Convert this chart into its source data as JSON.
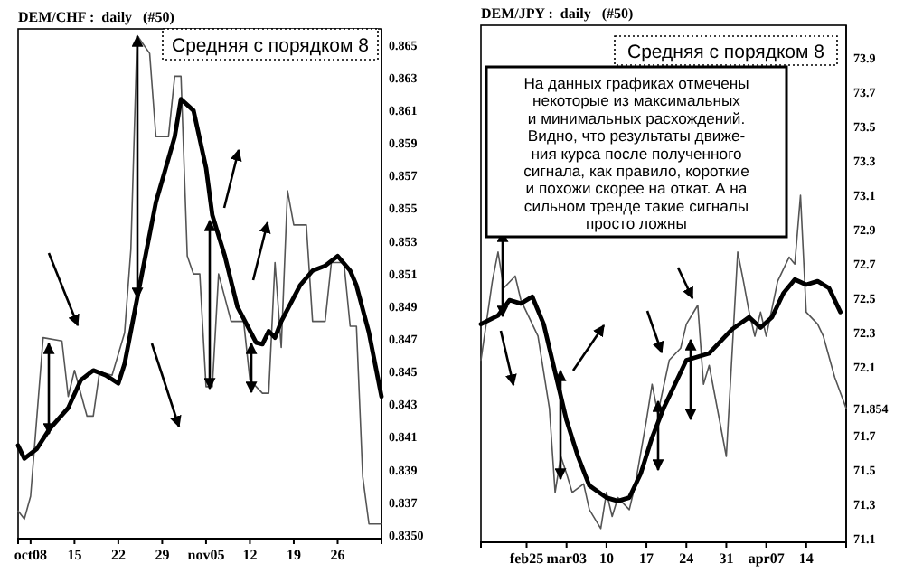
{
  "chart_data": [
    {
      "type": "line",
      "title": "DEM/CHF :  daily   (#50)",
      "annotations": [
        "Средняя с порядком 8"
      ],
      "xlim": [
        "--10-06",
        "--12-03"
      ],
      "xticks": [
        {
          "value": "--10-08",
          "label": "oct08"
        },
        {
          "value": "--10-15",
          "label": "15"
        },
        {
          "value": "--10-22",
          "label": "22"
        },
        {
          "value": "--10-29",
          "label": "29"
        },
        {
          "value": "--11-05",
          "label": "nov05"
        },
        {
          "value": "--11-12",
          "label": "12"
        },
        {
          "value": "--11-19",
          "label": "19"
        },
        {
          "value": "--11-26",
          "label": "26"
        }
      ],
      "ylim": [
        0.8348,
        0.866
      ],
      "yticks": [
        0.865,
        0.863,
        0.861,
        0.859,
        0.857,
        0.855,
        0.853,
        0.851,
        0.849,
        0.847,
        0.845,
        0.843,
        0.841,
        0.839,
        0.837,
        {
          "value": 0.835,
          "label": "0.8350"
        }
      ],
      "grid": false,
      "marker": "none",
      "series": [
        {
          "color": "#555555",
          "line_style": "solid",
          "x": [
            "--10-06",
            "--10-07",
            "--10-08",
            "--10-10",
            "--10-13",
            "--10-14",
            "--10-15",
            "--10-17",
            "--10-18",
            "--10-19",
            "--10-21",
            "--10-23",
            "--10-24",
            "--10-25",
            "--10-27",
            "--10-28",
            "--10-30",
            "--10-31",
            "--11-01",
            "--11-02",
            "--11-03",
            "--11-04",
            "--11-05",
            "--11-06",
            "--11-07",
            "--11-09",
            "--11-11",
            "--11-12",
            "--11-14",
            "--11-15",
            "--11-16",
            "--11-17",
            "--11-18",
            "--11-19",
            "--11-21",
            "--11-22",
            "--11-24",
            "--11-25",
            "--11-27",
            "--11-28",
            "--11-29",
            "--11-30",
            "--12-01",
            "--12-03"
          ],
          "values": [
            0.8365,
            0.836,
            0.8374,
            0.8471,
            0.8469,
            0.8435,
            0.8451,
            0.8423,
            0.8423,
            0.845,
            0.8448,
            0.8474,
            0.8525,
            0.8656,
            0.8645,
            0.8594,
            0.8594,
            0.8631,
            0.8631,
            0.8521,
            0.851,
            0.851,
            0.8441,
            0.8441,
            0.851,
            0.8481,
            0.8481,
            0.8445,
            0.8437,
            0.8437,
            0.8517,
            0.8465,
            0.8561,
            0.854,
            0.854,
            0.8481,
            0.8481,
            0.8517,
            0.8517,
            0.8478,
            0.8478,
            0.8386,
            0.8357,
            0.8357
          ]
        },
        {
          "color": "#000000",
          "line_style": "solid",
          "x": [
            "--10-06",
            "--10-07",
            "--10-09",
            "--10-11",
            "--10-14",
            "--10-16",
            "--10-18",
            "--10-20",
            "--10-22",
            "--10-23",
            "--10-25",
            "--10-28",
            "--10-31",
            "--11-01",
            "--11-03",
            "--11-05",
            "--11-06",
            "--11-08",
            "--11-10",
            "--11-13",
            "--11-14",
            "--11-15",
            "--11-16",
            "--11-17",
            "--11-20",
            "--11-22",
            "--11-24",
            "--11-26",
            "--11-28",
            "--11-29",
            "--12-01",
            "--12-03"
          ],
          "values": [
            0.8405,
            0.8397,
            0.8403,
            0.8415,
            0.8428,
            0.8445,
            0.8451,
            0.8448,
            0.8443,
            0.8455,
            0.8495,
            0.8554,
            0.8594,
            0.8617,
            0.861,
            0.8575,
            0.8546,
            0.8521,
            0.849,
            0.8468,
            0.8467,
            0.8475,
            0.8471,
            0.8481,
            0.8503,
            0.8512,
            0.8515,
            0.8521,
            0.8512,
            0.8503,
            0.8474,
            0.8435
          ]
        }
      ]
    },
    {
      "type": "line",
      "title": "DEM/JPY :  daily   (#50)",
      "annotations": [
        "Средняя с порядком 8",
        "На данных графиках отмечены\nнекоторые из максимальных\nи минимальных расхождений.\nВидно, что результаты движе-\nния курса после полученного\nсигнала, как правило, короткие\nи похожи скорее на откат. А на\nсильном тренде такие сигналы\nпросто ложны"
      ],
      "xlim": [
        "--02-17",
        "--04-21"
      ],
      "xticks": [
        {
          "value": "--02-25",
          "label": "feb25"
        },
        {
          "value": "--03-03",
          "label": "mar03"
        },
        {
          "value": "--03-10",
          "label": "10"
        },
        {
          "value": "--03-17",
          "label": "17"
        },
        {
          "value": "--03-24",
          "label": "24"
        },
        {
          "value": "--03-31",
          "label": "31"
        },
        {
          "value": "--04-07",
          "label": "apr07"
        },
        {
          "value": "--04-14",
          "label": "14"
        }
      ],
      "ylim": [
        71.08,
        74.09
      ],
      "yticks": [
        73.9,
        73.7,
        73.5,
        73.3,
        73.1,
        72.9,
        72.7,
        72.5,
        72.3,
        72.1,
        71.854,
        71.7,
        71.5,
        71.3,
        71.1
      ],
      "grid": false,
      "marker": "none",
      "series": [
        {
          "color": "#555555",
          "line_style": "solid",
          "x": [
            "--02-17",
            "--02-19",
            "--02-20",
            "--02-21",
            "--02-23",
            "--02-24",
            "--02-25",
            "--02-27",
            "--02-29",
            "--03-01",
            "--03-02",
            "--03-03",
            "--03-04",
            "--03-06",
            "--03-07",
            "--03-09",
            "--03-10",
            "--03-11",
            "--03-12",
            "--03-14",
            "--03-15",
            "--03-17",
            "--03-18",
            "--03-19",
            "--03-21",
            "--03-23",
            "--03-24",
            "--03-26",
            "--03-27",
            "--03-28",
            "--03-31",
            "--04-02",
            "--04-03",
            "--04-04",
            "--04-05",
            "--04-06",
            "--04-07",
            "--04-09",
            "--04-11",
            "--04-12",
            "--04-13",
            "--04-14",
            "--04-16",
            "--04-17",
            "--04-19",
            "--04-21"
          ],
          "values": [
            72.14,
            72.6,
            72.77,
            72.56,
            72.63,
            72.49,
            72.42,
            72.28,
            71.86,
            71.37,
            71.58,
            71.48,
            71.37,
            71.42,
            71.27,
            71.16,
            71.37,
            71.23,
            71.34,
            71.27,
            71.41,
            71.79,
            72.0,
            71.83,
            72.14,
            72.21,
            72.35,
            72.46,
            72.0,
            72.11,
            71.58,
            72.77,
            72.6,
            72.42,
            72.28,
            72.42,
            72.28,
            72.6,
            72.74,
            72.7,
            73.1,
            72.42,
            72.35,
            72.28,
            72.04,
            71.86
          ]
        },
        {
          "color": "#000000",
          "line_style": "solid",
          "x": [
            "--02-17",
            "--02-20",
            "--02-22",
            "--02-24",
            "--02-26",
            "--02-28",
            "--03-01",
            "--03-03",
            "--03-05",
            "--03-07",
            "--03-10",
            "--03-12",
            "--03-14",
            "--03-16",
            "--03-18",
            "--03-20",
            "--03-22",
            "--03-24",
            "--03-26",
            "--03-28",
            "--03-30",
            "--04-01",
            "--04-04",
            "--04-06",
            "--04-08",
            "--04-10",
            "--04-12",
            "--04-14",
            "--04-16",
            "--04-18",
            "--04-20"
          ],
          "values": [
            72.35,
            72.4,
            72.49,
            72.47,
            72.51,
            72.35,
            72.07,
            71.79,
            71.58,
            71.41,
            71.34,
            71.32,
            71.34,
            71.48,
            71.69,
            71.86,
            72.0,
            72.14,
            72.16,
            72.18,
            72.25,
            72.32,
            72.39,
            72.33,
            72.39,
            72.53,
            72.61,
            72.58,
            72.6,
            72.56,
            72.42
          ]
        }
      ]
    }
  ]
}
